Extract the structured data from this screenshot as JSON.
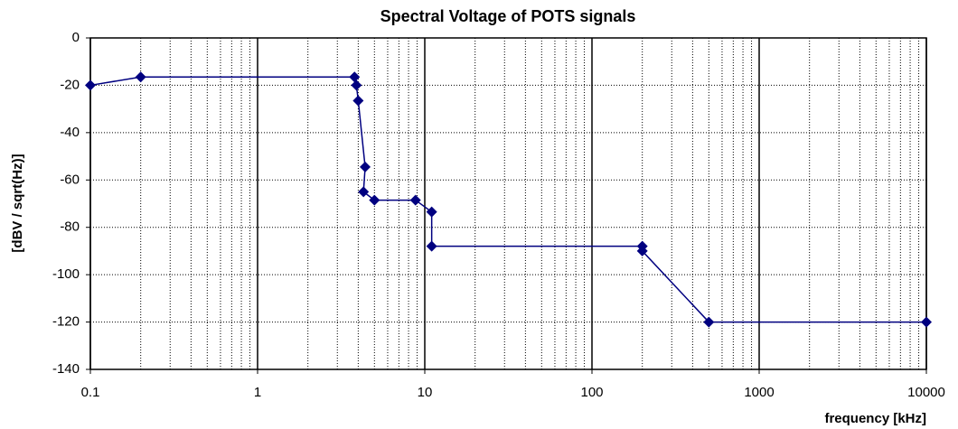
{
  "chart_data": {
    "type": "line",
    "title": "Spectral Voltage of POTS signals",
    "x_label": "frequency [kHz]",
    "y_label": "[dBV / sqrt(Hz)]",
    "x_log": true,
    "grid": true,
    "minor_grid": true,
    "xlim": [
      0.1,
      10000
    ],
    "xticks": [
      0.1,
      1,
      10,
      100,
      1000,
      10000
    ],
    "ylim": [
      -140,
      0
    ],
    "yticks": [
      0,
      -20,
      -40,
      -60,
      -80,
      -100,
      -120,
      -140
    ],
    "series": [
      {
        "name": "POTS",
        "color": "#000080",
        "x": [
          0.1,
          0.2,
          3.8,
          3.9,
          4.0,
          4.4,
          4.3,
          5.0,
          8.8,
          11,
          11,
          200,
          200,
          500,
          10000
        ],
        "values": [
          -20,
          -16.5,
          -16.5,
          -20,
          -26.5,
          -54.5,
          -65,
          -68.5,
          -68.5,
          -73.5,
          -88,
          -88,
          -90,
          -120,
          -120
        ]
      }
    ]
  }
}
